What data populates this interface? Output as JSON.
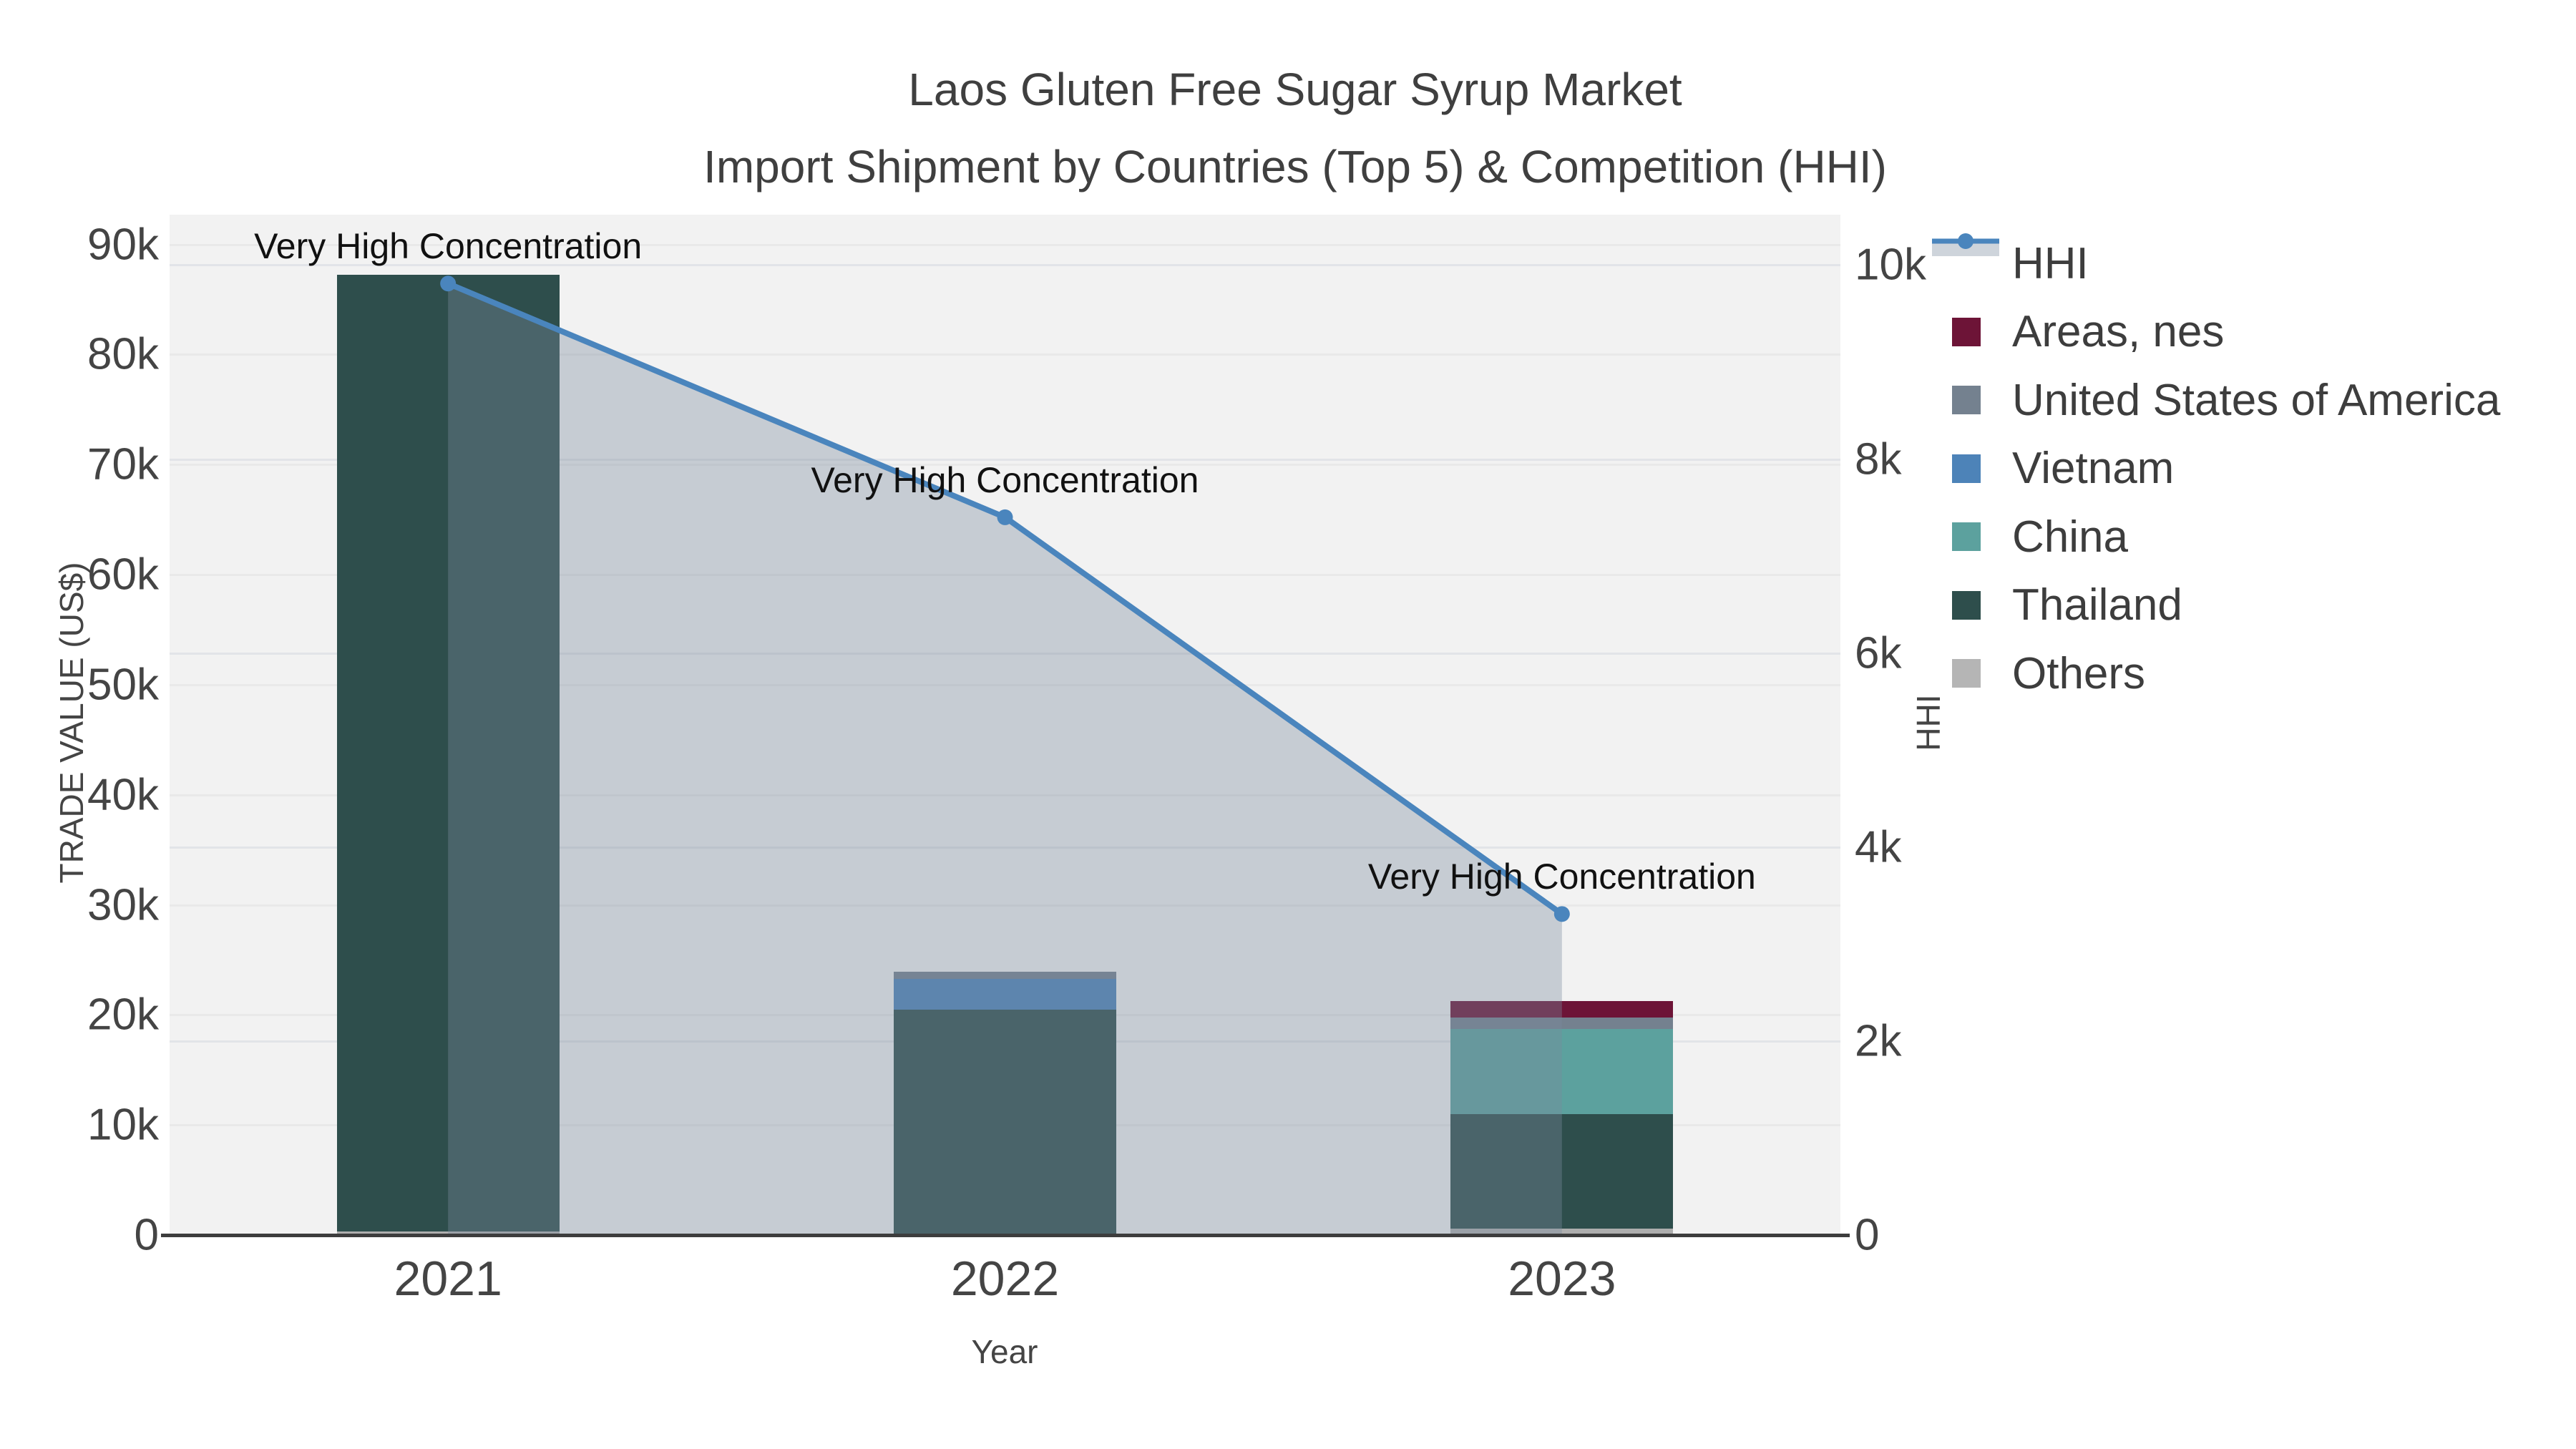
{
  "title": {
    "line1": "Laos Gluten Free Sugar Syrup Market",
    "line2": "Import Shipment by Countries (Top 5) & Competition (HHI)"
  },
  "chart_data": {
    "type": "bar+line",
    "categories": [
      "2021",
      "2022",
      "2023"
    ],
    "series": [
      {
        "name": "Others",
        "key": "others",
        "color": "#aeaeae",
        "values": [
          300,
          0,
          600
        ]
      },
      {
        "name": "Thailand",
        "key": "thailand",
        "color": "#2e4e4c",
        "values": [
          86950,
          20500,
          10400
        ]
      },
      {
        "name": "China",
        "key": "china",
        "color": "#5ca19e",
        "values": [
          0,
          0,
          7700
        ]
      },
      {
        "name": "Vietnam",
        "key": "vietnam",
        "color": "#4d83b8",
        "values": [
          0,
          2750,
          0
        ]
      },
      {
        "name": "United States of America",
        "key": "usa",
        "color": "#74818f",
        "values": [
          0,
          650,
          1050
        ]
      },
      {
        "name": "Areas, nes",
        "key": "areas_nes",
        "color": "#6d1437",
        "values": [
          0,
          0,
          1500
        ]
      }
    ],
    "hhi": {
      "name": "HHI",
      "values": [
        9810,
        7400,
        3310
      ],
      "line_color": "#4a85bd",
      "fill_color": "rgba(122,138,158,0.37)"
    },
    "annotations": [
      {
        "year": "2021",
        "text": "Very High Concentration"
      },
      {
        "year": "2022",
        "text": "Very High Concentration"
      },
      {
        "year": "2023",
        "text": "Very High Concentration"
      }
    ],
    "axes": {
      "x": {
        "label": "Year"
      },
      "left": {
        "label": "TRADE VALUE (US$)",
        "max": 92700,
        "ticks": [
          {
            "v": 0,
            "label": "0"
          },
          {
            "v": 10000,
            "label": "10k"
          },
          {
            "v": 20000,
            "label": "20k"
          },
          {
            "v": 30000,
            "label": "30k"
          },
          {
            "v": 40000,
            "label": "40k"
          },
          {
            "v": 50000,
            "label": "50k"
          },
          {
            "v": 60000,
            "label": "60k"
          },
          {
            "v": 70000,
            "label": "70k"
          },
          {
            "v": 80000,
            "label": "80k"
          },
          {
            "v": 90000,
            "label": "90k"
          }
        ]
      },
      "right": {
        "label": "HHI",
        "max": 10520,
        "ticks": [
          {
            "v": 0,
            "label": "0"
          },
          {
            "v": 2000,
            "label": "2k"
          },
          {
            "v": 4000,
            "label": "4k"
          },
          {
            "v": 6000,
            "label": "6k"
          },
          {
            "v": 8000,
            "label": "8k"
          },
          {
            "v": 10000,
            "label": "10k"
          }
        ]
      }
    },
    "legend": [
      {
        "label": "HHI",
        "key": "hhi",
        "type": "line",
        "color": "#4a85bd"
      },
      {
        "label": "Areas, nes",
        "key": "areas_nes",
        "type": "square",
        "color": "#6d1437"
      },
      {
        "label": "United States of America",
        "key": "usa",
        "type": "square",
        "color": "#74818f"
      },
      {
        "label": "Vietnam",
        "key": "vietnam",
        "type": "square",
        "color": "#4d83b8"
      },
      {
        "label": "China",
        "key": "china",
        "type": "square",
        "color": "#5ca19e"
      },
      {
        "label": "Thailand",
        "key": "thailand",
        "type": "square",
        "color": "#2e4e4c"
      },
      {
        "label": "Others",
        "key": "others",
        "type": "square",
        "color": "#b5b5b5"
      }
    ],
    "layout_hints": {
      "plot_bg": "#f2f2f2",
      "grid_on": true,
      "legend_position": "right",
      "annotation_above_each_hhi_point": true
    }
  }
}
